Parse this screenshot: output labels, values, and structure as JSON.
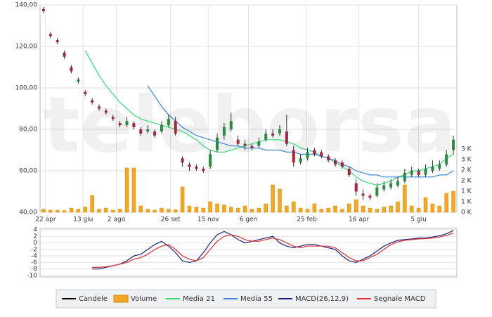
{
  "chart_data": [
    {
      "type": "candlestick",
      "watermark": "teleborsa",
      "xlim": [
        -0.5,
        59.5
      ],
      "xticks": [
        {
          "value": 0.3,
          "label": "22 apr"
        },
        {
          "value": 5.7,
          "label": "13 giu"
        },
        {
          "value": 10.5,
          "label": "2 ago"
        },
        {
          "value": 18.3,
          "label": "26 set"
        },
        {
          "value": 23.7,
          "label": "15 nov"
        },
        {
          "value": 29.5,
          "label": "6 gen"
        },
        {
          "value": 37.9,
          "label": "25 feb"
        },
        {
          "value": 45.4,
          "label": "16 apr"
        },
        {
          "value": 54.0,
          "label": "5 giu"
        }
      ],
      "ylim": [
        40,
        140
      ],
      "yticks": [
        {
          "value": 40,
          "label": "40,00"
        },
        {
          "value": 60,
          "label": "60,00"
        },
        {
          "value": 80,
          "label": "80,00"
        },
        {
          "value": 100,
          "label": "100,00"
        },
        {
          "value": 120,
          "label": "120,00"
        },
        {
          "value": 140,
          "label": "140,00"
        }
      ],
      "y2lim": [
        0,
        9833
      ],
      "y2ticks": [
        {
          "value": 0,
          "label": "0 K"
        },
        {
          "value": 500,
          "label": "1 K"
        },
        {
          "value": 1000,
          "label": "1 K"
        },
        {
          "value": 1500,
          "label": "2 K"
        },
        {
          "value": 2000,
          "label": "2 K"
        },
        {
          "value": 2500,
          "label": "3 K"
        },
        {
          "value": 3000,
          "label": "3 K"
        }
      ],
      "grid": true,
      "candles": {
        "name": "Candele",
        "color": "#000000",
        "up_color": "#2a8a3e",
        "down_color": "#a8233f",
        "open": [
          138,
          126,
          123,
          117,
          110,
          103,
          98,
          94,
          91,
          89,
          86,
          83,
          82,
          83,
          80,
          79,
          79,
          79,
          82,
          84,
          66,
          63,
          62,
          61,
          62,
          70,
          77,
          80,
          75,
          73,
          72,
          72,
          75,
          78,
          78,
          79,
          70,
          64,
          66,
          70,
          69,
          67,
          65,
          64,
          61,
          54,
          49,
          48,
          48,
          51,
          52,
          53,
          55,
          58,
          60,
          58,
          60,
          61,
          63,
          70
        ],
        "high": [
          139,
          127,
          124,
          118,
          111,
          105,
          99,
          95,
          92,
          90,
          87,
          84,
          86,
          84,
          81,
          82,
          80,
          84,
          87,
          86,
          67,
          64,
          63,
          62,
          70,
          78,
          83,
          88,
          77,
          75,
          73,
          76,
          80,
          80,
          82,
          87,
          72,
          68,
          71,
          71,
          70,
          68,
          66,
          65,
          62,
          56,
          51,
          49,
          54,
          55,
          56,
          57,
          61,
          62,
          61,
          63,
          65,
          65,
          70,
          77
        ],
        "low": [
          136,
          124,
          121,
          114,
          107,
          102,
          96,
          92,
          89,
          87,
          84,
          81,
          81,
          80,
          77,
          78,
          76,
          78,
          81,
          77,
          62,
          60,
          60,
          59,
          61,
          69,
          75,
          79,
          72,
          70,
          70,
          71,
          74,
          76,
          77,
          72,
          62,
          63,
          65,
          67,
          66,
          64,
          62,
          61,
          57,
          48,
          46,
          46,
          47,
          50,
          51,
          52,
          54,
          57,
          57,
          57,
          59,
          60,
          62,
          68
        ],
        "close": [
          137,
          125,
          122,
          115,
          108,
          104,
          97,
          93,
          90,
          88,
          85,
          82,
          84,
          81,
          78,
          80,
          77,
          82,
          85,
          78,
          64,
          62,
          61,
          60,
          68,
          76,
          81,
          84,
          73,
          72,
          71,
          74,
          78,
          77,
          80,
          73,
          64,
          66,
          69,
          68,
          67,
          65,
          63,
          62,
          58,
          50,
          48,
          47,
          52,
          53,
          54,
          55,
          59,
          60,
          58,
          61,
          62,
          63,
          68,
          75
        ]
      },
      "series": [
        {
          "name": "Volume",
          "type": "bar",
          "axis": "y2",
          "color": "#f5a623",
          "values": [
            150,
            100,
            100,
            80,
            200,
            150,
            250,
            800,
            150,
            200,
            100,
            150,
            2100,
            2100,
            300,
            150,
            100,
            200,
            150,
            120,
            1200,
            300,
            250,
            200,
            500,
            400,
            350,
            250,
            200,
            300,
            150,
            200,
            400,
            1300,
            1100,
            300,
            500,
            200,
            150,
            400,
            150,
            200,
            300,
            150,
            400,
            600,
            300,
            200,
            150,
            250,
            300,
            500,
            1300,
            300,
            200,
            700,
            400,
            300,
            900,
            1000
          ]
        },
        {
          "name": "Media 21",
          "type": "line",
          "color": "#33dd77",
          "values": [
            null,
            null,
            null,
            null,
            null,
            null,
            118,
            112,
            106,
            101,
            97,
            93,
            90,
            87,
            85,
            84,
            83,
            82,
            81,
            80,
            79,
            77,
            75,
            72,
            70,
            69,
            69,
            70,
            71,
            72,
            73,
            74,
            75,
            75,
            75,
            74,
            73,
            71,
            70,
            69,
            67,
            66,
            64,
            62,
            60,
            57,
            55,
            54,
            53,
            54,
            55,
            57,
            58,
            60,
            60,
            61,
            62,
            63,
            66,
            68
          ]
        },
        {
          "name": "Media 55",
          "type": "line",
          "color": "#3388dd",
          "values": [
            null,
            null,
            null,
            null,
            null,
            null,
            null,
            null,
            null,
            null,
            null,
            null,
            null,
            null,
            null,
            101,
            96,
            91,
            87,
            84,
            81,
            79,
            77,
            76,
            75,
            74,
            73,
            72,
            72,
            71,
            71,
            71,
            70,
            70,
            70,
            69,
            69,
            68,
            68,
            68,
            67,
            66,
            65,
            63,
            62,
            60,
            59,
            58,
            58,
            57,
            57,
            57,
            57,
            57,
            57,
            57,
            57,
            58,
            58,
            60
          ]
        }
      ]
    },
    {
      "type": "line",
      "xlim": [
        -0.5,
        59.5
      ],
      "ylim": [
        -10,
        4
      ],
      "yticks": [
        4,
        2,
        0,
        -2,
        -4,
        -6,
        -8,
        -10
      ],
      "grid": true,
      "series": [
        {
          "name": "MACD(26,12,9)",
          "color": "#1a237e",
          "values": [
            null,
            null,
            null,
            null,
            null,
            null,
            null,
            -8,
            -8,
            -7.5,
            -7,
            -6.5,
            -5.5,
            -4,
            -3.5,
            -2,
            -0.5,
            0.5,
            -1,
            -3,
            -5.5,
            -6,
            -5.5,
            -3,
            0,
            2.5,
            3.5,
            2.5,
            1,
            0,
            0.5,
            1,
            1.5,
            2,
            0,
            -1,
            -1.5,
            -1,
            -0.5,
            -0.5,
            -1,
            -1.5,
            -2,
            -4,
            -5.5,
            -6,
            -5,
            -4,
            -2.5,
            -1,
            0,
            0.8,
            1,
            1.2,
            1.5,
            1.5,
            1.8,
            2.2,
            2.8,
            3.8
          ]
        },
        {
          "name": "Segnale MACD",
          "color": "#e03030",
          "values": [
            null,
            null,
            null,
            null,
            null,
            null,
            null,
            -7.5,
            -7.5,
            -7.3,
            -7,
            -6.5,
            -6,
            -5,
            -4.5,
            -3.5,
            -2,
            -1,
            -0.5,
            -2,
            -4,
            -5,
            -5.5,
            -4.5,
            -2,
            0.5,
            2,
            2.5,
            2,
            1,
            0.5,
            0.5,
            1,
            1.5,
            1,
            0,
            -1,
            -1.5,
            -1,
            -1,
            -1,
            -1,
            -1.5,
            -3,
            -4.5,
            -5.5,
            -5.5,
            -4.5,
            -3.5,
            -2,
            -0.5,
            0.3,
            0.8,
            1,
            1.2,
            1.3,
            1.5,
            1.8,
            2.3,
            3
          ]
        }
      ]
    }
  ]
}
